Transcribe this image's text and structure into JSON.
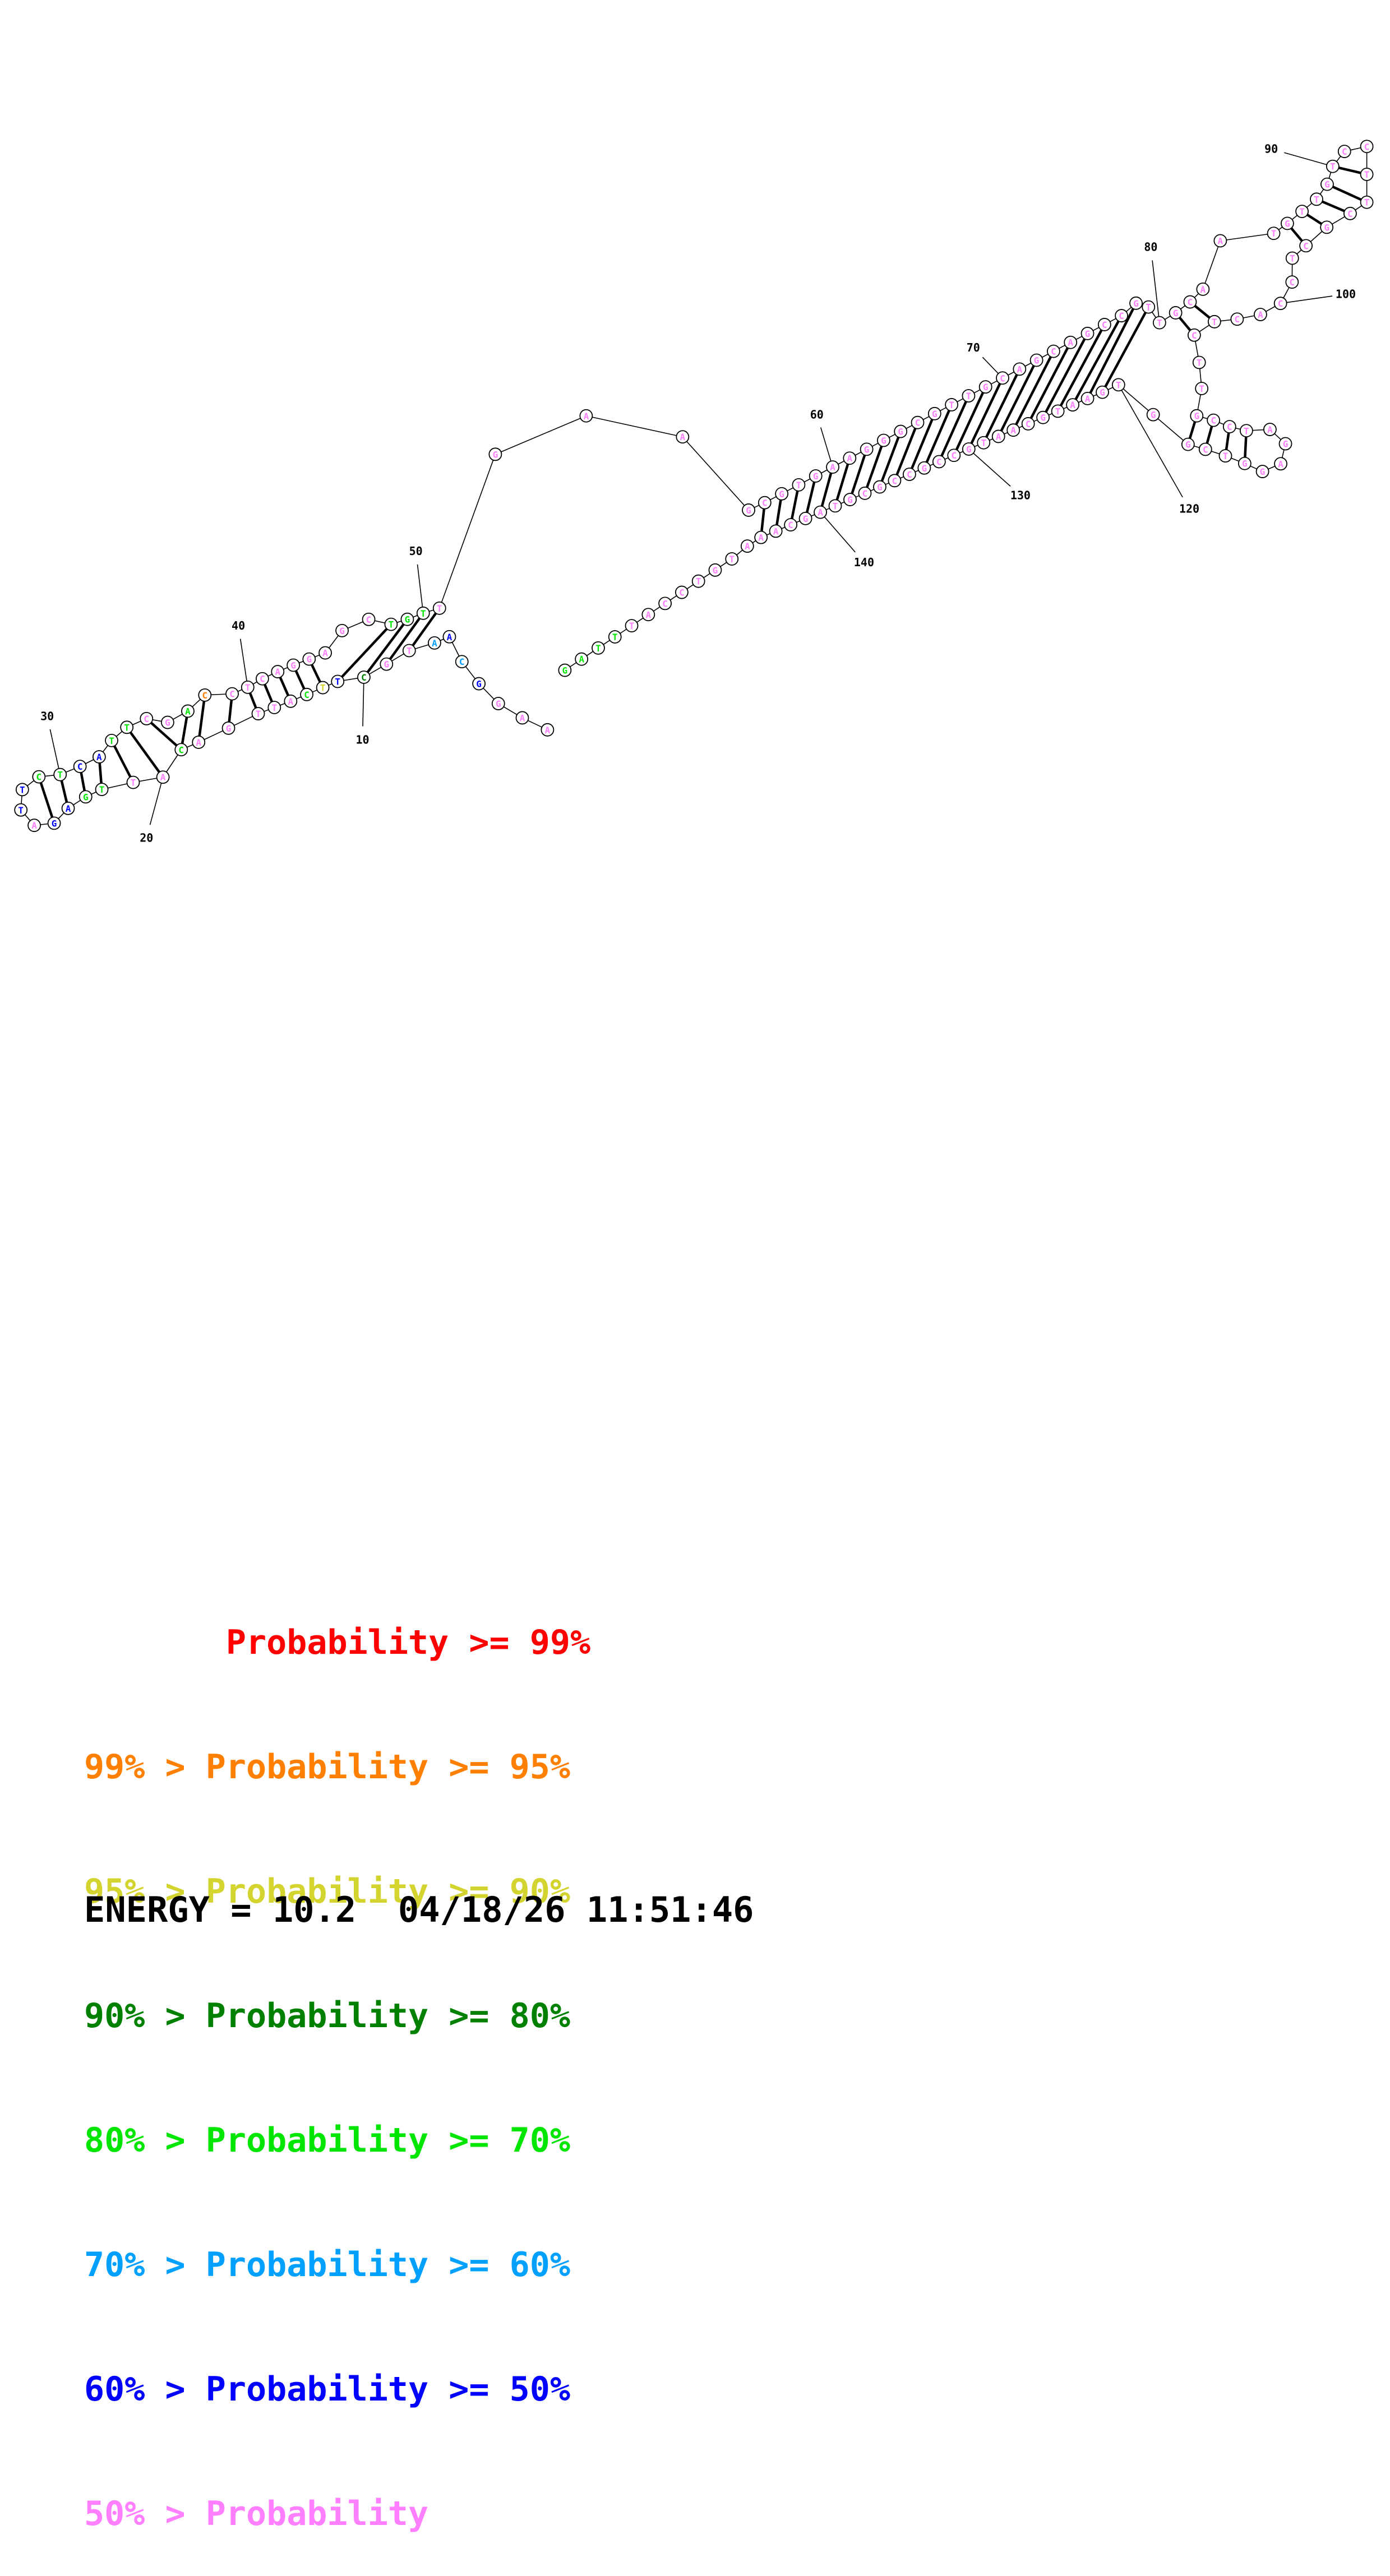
{
  "colors": {
    "p99": "#ff0000",
    "p95": "#ff7f00",
    "p90": "#d4d430",
    "p80": "#008000",
    "p70": "#00e600",
    "p60": "#00a0ff",
    "p50": "#0000ff",
    "plt50": "#ff80ff"
  },
  "structure": {
    "sequence": "AAGGCAATGCTTCATTGACATTGAGATTCTCATTCGACCTCAGGAGCTGTTGAAGCGTGAAGGGCGTTGCAGCAGCCGTTGCAATGTTGTCCTTCGCTCCACTCTTGCCTAGAGGTCGGTGAATGCAATGCCGCCGCGTAGCAAATGTCCATTTAG",
    "prob_classes": "77765657736287777787788667668866887741777777777888777777777777777777777777777777777777777777777777777777777777777777777777777777777777777777777777777777",
    "position_labels": [
      "10",
      "20",
      "30",
      "40",
      "50",
      "60",
      "70",
      "80",
      "90",
      "100",
      "120",
      "130",
      "140"
    ]
  },
  "legend": [
    {
      "text": "       Probability >= 99%",
      "color": "#ff0000"
    },
    {
      "text": "99% > Probability >= 95%",
      "color": "#ff7f00"
    },
    {
      "text": "95% > Probability >= 90%",
      "color": "#d4d430"
    },
    {
      "text": "90% > Probability >= 80%",
      "color": "#008000"
    },
    {
      "text": "80% > Probability >= 70%",
      "color": "#00e600"
    },
    {
      "text": "70% > Probability >= 60%",
      "color": "#00a0ff"
    },
    {
      "text": "60% > Probability >= 50%",
      "color": "#0000ff"
    },
    {
      "text": "50% > Probability",
      "color": "#ff80ff"
    }
  ],
  "energy_line": "ENERGY = 10.2  04/18/26 11:51:46"
}
